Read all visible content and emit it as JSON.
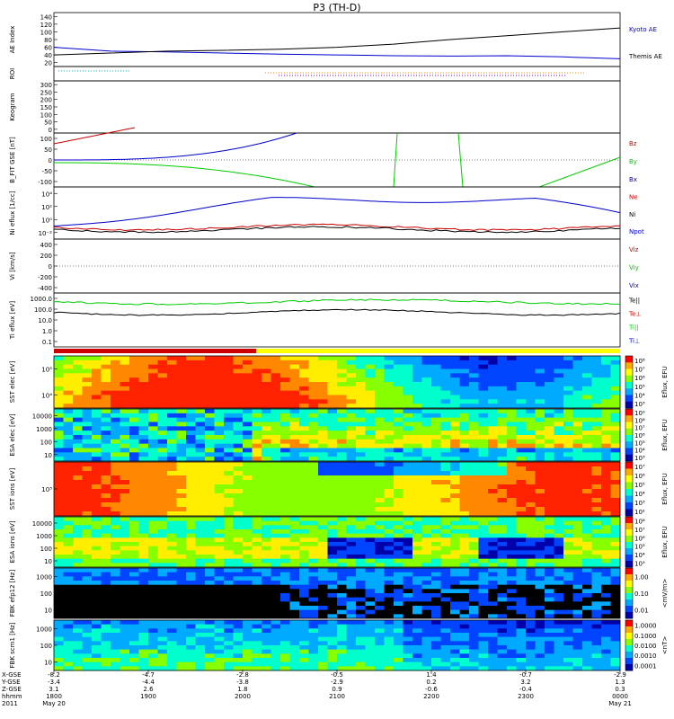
{
  "title": "P3 (TH-D)",
  "colors": {
    "red": "#cc0000",
    "green": "#00cc00",
    "blue": "#0000cc",
    "black": "#000000",
    "orange": "#ff8800",
    "purple": "#9900cc",
    "cyan": "#00cccc"
  },
  "chart_data": [
    {
      "id": "ae",
      "type": "line",
      "ylabel": "AE Index",
      "yticks": [
        "140",
        "120",
        "100",
        "80",
        "60",
        "40",
        "20"
      ],
      "ylim": [
        10,
        150
      ],
      "series": [
        {
          "name": "Kyoto AE",
          "color": "blue",
          "x": [
            0,
            0.1,
            0.2,
            0.3,
            0.4,
            0.5,
            0.6,
            0.7,
            0.8,
            0.9,
            1
          ],
          "y": [
            60,
            50,
            48,
            45,
            42,
            40,
            38,
            37,
            38,
            35,
            30
          ]
        },
        {
          "name": "Themis AE",
          "color": "black",
          "x": [
            0,
            0.1,
            0.2,
            0.3,
            0.4,
            0.5,
            0.6,
            0.7,
            0.8,
            0.9,
            1
          ],
          "y": [
            40,
            45,
            50,
            52,
            55,
            60,
            68,
            80,
            90,
            100,
            110
          ]
        }
      ]
    },
    {
      "id": "roi",
      "type": "line",
      "ylabel": "ROI"
    },
    {
      "id": "keogram",
      "type": "line",
      "ylabel": "Keogram",
      "yticks": [
        "300",
        "250",
        "200",
        "150",
        "100",
        "50",
        "0"
      ],
      "ylim": [
        0,
        300
      ]
    },
    {
      "id": "bfit",
      "type": "line",
      "ylabel": "B_FIT GSE [nT]",
      "yticks": [
        "100",
        "50",
        "0",
        "-50",
        "-100"
      ],
      "ylim": [
        -100,
        100
      ],
      "series": [
        {
          "name": "Bz",
          "color": "red"
        },
        {
          "name": "By",
          "color": "green"
        },
        {
          "name": "Bx",
          "color": "blue"
        }
      ]
    },
    {
      "id": "ni",
      "type": "line",
      "ylabel": "Ni eflux [1/cc]",
      "yticks": [
        "10⁴",
        "10²",
        "10⁰",
        "10⁻²"
      ],
      "series": [
        {
          "name": "Ne",
          "color": "red"
        },
        {
          "name": "Ni",
          "color": "black"
        },
        {
          "name": "Npot",
          "color": "blue"
        }
      ]
    },
    {
      "id": "vi",
      "type": "line",
      "ylabel": "Vi [km/s]",
      "yticks": [
        "400",
        "200",
        "0",
        "-200",
        "-400"
      ],
      "ylim": [
        -400,
        400
      ],
      "series": [
        {
          "name": "Viz",
          "color": "red"
        },
        {
          "name": "Viy",
          "color": "green"
        },
        {
          "name": "Vix",
          "color": "blue"
        }
      ]
    },
    {
      "id": "ti",
      "type": "line",
      "ylabel": "Ti eflux [eV]",
      "yticks": [
        "1000.0",
        "100.0",
        "10.0",
        "1.0",
        "0.1"
      ],
      "series": [
        {
          "name": "Te||",
          "color": "black"
        },
        {
          "name": "Te⊥",
          "color": "red"
        },
        {
          "name": "Ti||",
          "color": "green"
        },
        {
          "name": "Ti⊥",
          "color": "blue"
        }
      ]
    },
    {
      "id": "sst_e",
      "type": "heatmap",
      "ylabel": "SST elec [eV]",
      "yticks": [
        "10⁵",
        "10⁴"
      ],
      "colorbar_label": "Eflux, EFU",
      "colorbar_ticks": [
        "10⁸",
        "10⁷",
        "10⁶",
        "10⁵",
        "10⁴",
        "10³"
      ]
    },
    {
      "id": "esa_e",
      "type": "heatmap",
      "ylabel": "ESA elec [eV]",
      "yticks": [
        "10000",
        "1000",
        "100",
        "10"
      ],
      "colorbar_label": "Eflux, EFU",
      "colorbar_ticks": [
        "10⁹",
        "10⁸",
        "10⁷",
        "10⁶",
        "10⁵",
        "10⁴",
        "10³"
      ]
    },
    {
      "id": "sst_i",
      "type": "heatmap",
      "ylabel": "SST ions [eV]",
      "yticks": [
        "10⁵"
      ],
      "colorbar_label": "Eflux, EFU",
      "colorbar_ticks": [
        "10⁷",
        "10⁶",
        "10⁵",
        "10⁴",
        "10³",
        "10²"
      ]
    },
    {
      "id": "esa_i",
      "type": "heatmap",
      "ylabel": "ESA ions [eV]",
      "yticks": [
        "10000",
        "1000",
        "100",
        "10"
      ],
      "colorbar_label": "Eflux, EFU",
      "colorbar_ticks": [
        "10⁸",
        "10⁷",
        "10⁶",
        "10⁵",
        "10⁴",
        "10³"
      ]
    },
    {
      "id": "fbk_e",
      "type": "heatmap",
      "ylabel": "FBK efp12 [Hz]",
      "yticks": [
        "1000",
        "100",
        "10"
      ],
      "colorbar_label": "<mV/m>",
      "colorbar_ticks": [
        "1.00",
        "0.10",
        "0.01"
      ]
    },
    {
      "id": "fbk_b",
      "type": "heatmap",
      "ylabel": "FBK scm1 [Hz]",
      "yticks": [
        "1000",
        "100",
        "10"
      ],
      "colorbar_label": "<nT>",
      "colorbar_ticks": [
        "1.0000",
        "0.1000",
        "0.0100",
        "0.0010",
        "0.0001"
      ]
    }
  ],
  "x_axis": {
    "row_labels": [
      "X-GSE",
      "Y-GSE",
      "Z-GSE",
      "hhmm",
      "2011"
    ],
    "columns": [
      {
        "x": "-8.2",
        "y": "-3.4",
        "z": "3.1",
        "hhmm": "1800",
        "date": "May 20"
      },
      {
        "x": "-4.7",
        "y": "-4.4",
        "z": "2.6",
        "hhmm": "1900",
        "date": ""
      },
      {
        "x": "-2.8",
        "y": "-3.8",
        "z": "1.8",
        "hhmm": "2000",
        "date": ""
      },
      {
        "x": "-0.5",
        "y": "-2.9",
        "z": "0.9",
        "hhmm": "2100",
        "date": ""
      },
      {
        "x": "1.4",
        "y": "0.2",
        "z": "-0.6",
        "hhmm": "2200",
        "date": ""
      },
      {
        "x": "-0.7",
        "y": "3.2",
        "z": "-0.4",
        "hhmm": "2300",
        "date": ""
      },
      {
        "x": "-2.9",
        "y": "1.3",
        "z": "0.3",
        "hhmm": "0000",
        "date": "May 21"
      }
    ]
  }
}
